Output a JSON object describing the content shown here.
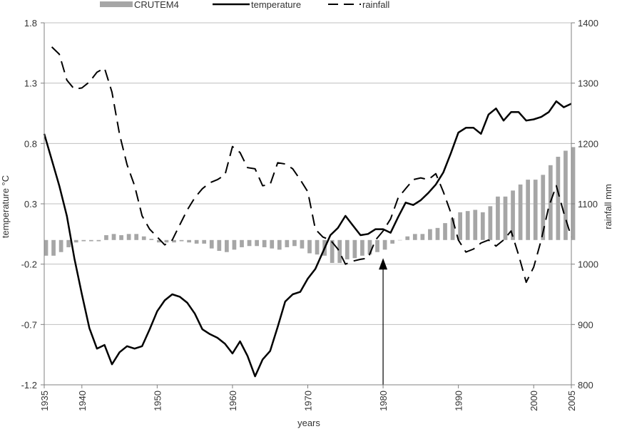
{
  "chart_data": {
    "type": "bar+line",
    "xlabel": "years",
    "ylabel_left": "temperature °C",
    "ylabel_right": "rainfall mm",
    "ylim_left": [
      -1.2,
      1.8
    ],
    "ylim_right": [
      800,
      1400
    ],
    "xlim": [
      1935,
      2005
    ],
    "x_ticks": [
      1935,
      1940,
      1950,
      1960,
      1970,
      1980,
      1990,
      2000,
      2005
    ],
    "y_ticks_left": [
      "-1.2",
      "-0.7",
      "-0.2",
      "0.3",
      "0.8",
      "1.3",
      "1.8"
    ],
    "y_ticks_right": [
      "800",
      "900",
      "1000",
      "1100",
      "1200",
      "1300",
      "1400"
    ],
    "grid": true,
    "legend_position": "top",
    "annotation": {
      "type": "arrow",
      "x": 1980,
      "direction": "up",
      "from_y": -1.2,
      "to_y": -0.15
    },
    "colors": {
      "bars": "#a6a6a6",
      "temperature": "#000000",
      "rainfall": "#000000",
      "grid": "#bfbfbf"
    },
    "series": [
      {
        "name": "CRUTEM4",
        "type": "bar",
        "axis": "left",
        "values": [
          [
            1935,
            -0.13
          ],
          [
            1936,
            -0.13
          ],
          [
            1937,
            -0.1
          ],
          [
            1938,
            -0.06
          ],
          [
            1939,
            -0.02
          ],
          [
            1940,
            -0.01
          ],
          [
            1941,
            -0.01
          ],
          [
            1942,
            -0.01
          ],
          [
            1943,
            0.04
          ],
          [
            1944,
            0.05
          ],
          [
            1945,
            0.04
          ],
          [
            1946,
            0.05
          ],
          [
            1947,
            0.05
          ],
          [
            1948,
            0.03
          ],
          [
            1949,
            0.01
          ],
          [
            1950,
            -0.02
          ],
          [
            1951,
            -0.02
          ],
          [
            1952,
            -0.02
          ],
          [
            1953,
            -0.01
          ],
          [
            1954,
            -0.02
          ],
          [
            1955,
            -0.03
          ],
          [
            1956,
            -0.03
          ],
          [
            1957,
            -0.07
          ],
          [
            1958,
            -0.09
          ],
          [
            1959,
            -0.1
          ],
          [
            1960,
            -0.08
          ],
          [
            1961,
            -0.06
          ],
          [
            1962,
            -0.05
          ],
          [
            1963,
            -0.05
          ],
          [
            1964,
            -0.06
          ],
          [
            1965,
            -0.07
          ],
          [
            1966,
            -0.08
          ],
          [
            1967,
            -0.06
          ],
          [
            1968,
            -0.05
          ],
          [
            1969,
            -0.07
          ],
          [
            1970,
            -0.11
          ],
          [
            1971,
            -0.12
          ],
          [
            1972,
            -0.13
          ],
          [
            1973,
            -0.19
          ],
          [
            1974,
            -0.19
          ],
          [
            1975,
            -0.16
          ],
          [
            1976,
            -0.15
          ],
          [
            1977,
            -0.13
          ],
          [
            1978,
            -0.12
          ],
          [
            1979,
            -0.1
          ],
          [
            1980,
            -0.08
          ],
          [
            1981,
            -0.03
          ],
          [
            1982,
            0.0
          ],
          [
            1983,
            0.03
          ],
          [
            1984,
            0.05
          ],
          [
            1985,
            0.05
          ],
          [
            1986,
            0.09
          ],
          [
            1987,
            0.1
          ],
          [
            1988,
            0.14
          ],
          [
            1989,
            0.18
          ],
          [
            1990,
            0.23
          ],
          [
            1991,
            0.24
          ],
          [
            1992,
            0.25
          ],
          [
            1993,
            0.23
          ],
          [
            1994,
            0.28
          ],
          [
            1995,
            0.36
          ],
          [
            1996,
            0.36
          ],
          [
            1997,
            0.41
          ],
          [
            1998,
            0.46
          ],
          [
            1999,
            0.5
          ],
          [
            2000,
            0.5
          ],
          [
            2001,
            0.54
          ],
          [
            2002,
            0.62
          ],
          [
            2003,
            0.69
          ],
          [
            2004,
            0.74
          ],
          [
            2005,
            0.77
          ]
        ]
      },
      {
        "name": "temperature",
        "type": "line",
        "axis": "left",
        "values": [
          [
            1935,
            0.88
          ],
          [
            1937,
            0.45
          ],
          [
            1938,
            0.2
          ],
          [
            1939,
            -0.15
          ],
          [
            1940,
            -0.45
          ],
          [
            1941,
            -0.73
          ],
          [
            1942,
            -0.9
          ],
          [
            1943,
            -0.87
          ],
          [
            1944,
            -1.03
          ],
          [
            1945,
            -0.93
          ],
          [
            1946,
            -0.88
          ],
          [
            1947,
            -0.9
          ],
          [
            1948,
            -0.88
          ],
          [
            1949,
            -0.74
          ],
          [
            1950,
            -0.59
          ],
          [
            1951,
            -0.5
          ],
          [
            1952,
            -0.45
          ],
          [
            1953,
            -0.47
          ],
          [
            1954,
            -0.52
          ],
          [
            1955,
            -0.61
          ],
          [
            1956,
            -0.74
          ],
          [
            1957,
            -0.78
          ],
          [
            1958,
            -0.81
          ],
          [
            1959,
            -0.86
          ],
          [
            1960,
            -0.94
          ],
          [
            1961,
            -0.84
          ],
          [
            1962,
            -0.96
          ],
          [
            1963,
            -1.13
          ],
          [
            1964,
            -0.99
          ],
          [
            1965,
            -0.92
          ],
          [
            1966,
            -0.72
          ],
          [
            1967,
            -0.51
          ],
          [
            1968,
            -0.45
          ],
          [
            1969,
            -0.43
          ],
          [
            1970,
            -0.32
          ],
          [
            1971,
            -0.24
          ],
          [
            1972,
            -0.1
          ],
          [
            1973,
            0.04
          ],
          [
            1974,
            0.1
          ],
          [
            1975,
            0.2
          ],
          [
            1976,
            0.12
          ],
          [
            1977,
            0.04
          ],
          [
            1978,
            0.05
          ],
          [
            1979,
            0.09
          ],
          [
            1980,
            0.09
          ],
          [
            1981,
            0.06
          ],
          [
            1982,
            0.19
          ],
          [
            1983,
            0.31
          ],
          [
            1984,
            0.29
          ],
          [
            1985,
            0.33
          ],
          [
            1986,
            0.39
          ],
          [
            1987,
            0.46
          ],
          [
            1988,
            0.56
          ],
          [
            1989,
            0.72
          ],
          [
            1990,
            0.89
          ],
          [
            1991,
            0.93
          ],
          [
            1992,
            0.93
          ],
          [
            1993,
            0.88
          ],
          [
            1994,
            1.04
          ],
          [
            1995,
            1.09
          ],
          [
            1996,
            0.99
          ],
          [
            1997,
            1.06
          ],
          [
            1998,
            1.06
          ],
          [
            1999,
            0.99
          ],
          [
            2000,
            1.0
          ],
          [
            2001,
            1.02
          ],
          [
            2002,
            1.06
          ],
          [
            2003,
            1.15
          ],
          [
            2004,
            1.1
          ],
          [
            2005,
            1.13
          ]
        ]
      },
      {
        "name": "rainfall",
        "type": "line",
        "dash": true,
        "axis": "right",
        "values": [
          [
            1936,
            1360
          ],
          [
            1937,
            1348
          ],
          [
            1938,
            1305
          ],
          [
            1939,
            1290
          ],
          [
            1940,
            1292
          ],
          [
            1941,
            1302
          ],
          [
            1942,
            1318
          ],
          [
            1943,
            1325
          ],
          [
            1944,
            1285
          ],
          [
            1945,
            1215
          ],
          [
            1946,
            1165
          ],
          [
            1947,
            1130
          ],
          [
            1948,
            1080
          ],
          [
            1949,
            1058
          ],
          [
            1950,
            1045
          ],
          [
            1951,
            1032
          ],
          [
            1952,
            1040
          ],
          [
            1953,
            1065
          ],
          [
            1954,
            1090
          ],
          [
            1955,
            1110
          ],
          [
            1956,
            1125
          ],
          [
            1957,
            1135
          ],
          [
            1958,
            1140
          ],
          [
            1959,
            1148
          ],
          [
            1960,
            1195
          ],
          [
            1961,
            1185
          ],
          [
            1962,
            1160
          ],
          [
            1963,
            1158
          ],
          [
            1964,
            1130
          ],
          [
            1965,
            1132
          ],
          [
            1966,
            1168
          ],
          [
            1967,
            1166
          ],
          [
            1968,
            1158
          ],
          [
            1969,
            1140
          ],
          [
            1970,
            1120
          ],
          [
            1971,
            1058
          ],
          [
            1972,
            1045
          ],
          [
            1973,
            1040
          ],
          [
            1974,
            1025
          ],
          [
            1975,
            1000
          ],
          [
            1976,
            1005
          ],
          [
            1977,
            1008
          ],
          [
            1978,
            1010
          ],
          [
            1979,
            1040
          ],
          [
            1980,
            1055
          ],
          [
            1981,
            1075
          ],
          [
            1982,
            1110
          ],
          [
            1983,
            1125
          ],
          [
            1984,
            1140
          ],
          [
            1985,
            1143
          ],
          [
            1986,
            1140
          ],
          [
            1987,
            1150
          ],
          [
            1988,
            1120
          ],
          [
            1989,
            1085
          ],
          [
            1990,
            1040
          ],
          [
            1991,
            1020
          ],
          [
            1992,
            1025
          ],
          [
            1993,
            1035
          ],
          [
            1994,
            1040
          ],
          [
            1995,
            1030
          ],
          [
            1996,
            1040
          ],
          [
            1997,
            1055
          ],
          [
            1998,
            1015
          ],
          [
            1999,
            970
          ],
          [
            2000,
            995
          ],
          [
            2001,
            1040
          ],
          [
            2002,
            1095
          ],
          [
            2003,
            1130
          ],
          [
            2004,
            1085
          ],
          [
            2005,
            1045
          ]
        ]
      }
    ]
  }
}
